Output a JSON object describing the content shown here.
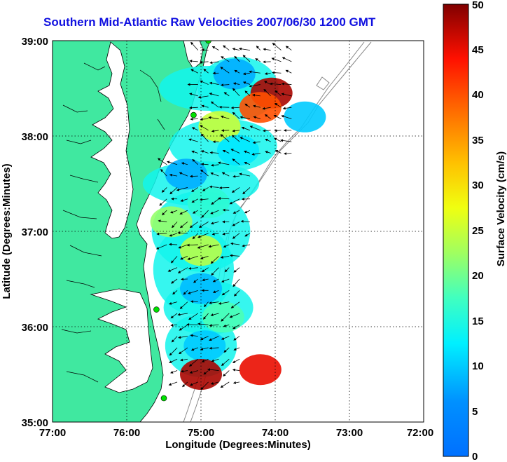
{
  "title": "Southern Mid-Atlantic Raw Velocities 2007/06/30 1200 GMT",
  "map": {
    "xlabel": "Longitude (Degrees:Minutes)",
    "ylabel": "Latitude (Degrees:Minutes)",
    "x_ticks": [
      "77:00",
      "76:00",
      "75:00",
      "74:00",
      "73:00",
      "72:00"
    ],
    "y_ticks": [
      "39:00",
      "38:00",
      "37:00",
      "36:00",
      "35:00"
    ],
    "x_range_deg_west": [
      77,
      72
    ],
    "y_range_deg_north": [
      35,
      39
    ],
    "grid": "dotted",
    "land_color": "#40e8a0",
    "coast_color": "#000000",
    "isobath_color": "#888888",
    "station_color": "#00e000"
  },
  "colorbar": {
    "label": "Surface Velocity (cm/s)",
    "ticks": [
      "0",
      "5",
      "10",
      "15",
      "20",
      "25",
      "30",
      "35",
      "40",
      "45",
      "50"
    ],
    "range": [
      0,
      50
    ],
    "colormap": "jet"
  },
  "chart_data": {
    "type": "heatmap",
    "title": "Southern Mid-Atlantic Raw Velocities 2007/06/30 1200 GMT",
    "xlabel": "Longitude (Degrees:Minutes)",
    "ylabel": "Latitude (Degrees:Minutes)",
    "units": "cm/s",
    "value_range": [
      0,
      50
    ],
    "velocity_patches": [
      {
        "lon": -74.05,
        "lat": 38.45,
        "speed": 48
      },
      {
        "lon": -74.2,
        "lat": 38.3,
        "speed": 40
      },
      {
        "lon": -74.55,
        "lat": 38.65,
        "speed": 8
      },
      {
        "lon": -74.75,
        "lat": 38.1,
        "speed": 25
      },
      {
        "lon": -74.5,
        "lat": 37.85,
        "speed": 12
      },
      {
        "lon": -75.2,
        "lat": 37.6,
        "speed": 8
      },
      {
        "lon": -74.9,
        "lat": 37.3,
        "speed": 16
      },
      {
        "lon": -75.4,
        "lat": 37.1,
        "speed": 22
      },
      {
        "lon": -75.0,
        "lat": 36.8,
        "speed": 24
      },
      {
        "lon": -75.0,
        "lat": 36.4,
        "speed": 9
      },
      {
        "lon": -74.7,
        "lat": 36.1,
        "speed": 18
      },
      {
        "lon": -74.95,
        "lat": 35.8,
        "speed": 10
      },
      {
        "lon": -75.0,
        "lat": 35.5,
        "speed": 48
      },
      {
        "lon": -74.2,
        "lat": 35.55,
        "speed": 45
      },
      {
        "lon": -73.6,
        "lat": 38.2,
        "speed": 10
      }
    ],
    "stations": [
      {
        "lon": -74.9,
        "lat": 39.0
      },
      {
        "lon": -75.1,
        "lat": 38.22
      },
      {
        "lon": -75.6,
        "lat": 36.18
      },
      {
        "lon": -75.5,
        "lat": 35.25
      }
    ]
  }
}
